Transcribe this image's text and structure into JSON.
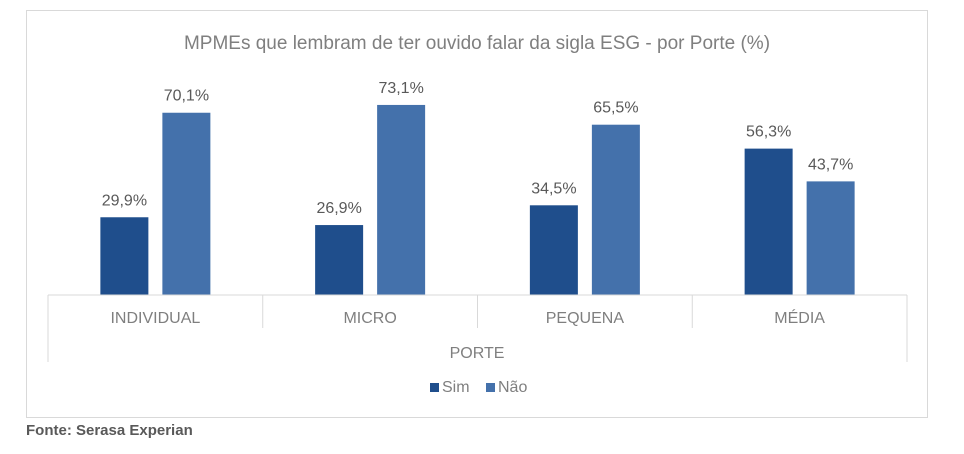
{
  "source_note": "Fonte: Serasa Experian",
  "colors": {
    "sim": "#1f4e8c",
    "nao": "#4471ab",
    "text": "#7f7f7f",
    "axis": "#d9d9d9"
  },
  "chart_data": {
    "type": "bar",
    "title": "MPMEs que lembram de ter ouvido falar da sigla ESG - por Porte (%)",
    "xlabel": "PORTE",
    "ylabel": "",
    "categories": [
      "INDIVIDUAL",
      "MICRO",
      "PEQUENA",
      "MÉDIA"
    ],
    "series": [
      {
        "name": "Sim",
        "values": [
          29.9,
          26.9,
          34.5,
          56.3
        ],
        "labels": [
          "29,9%",
          "26,9%",
          "34,5%",
          "56,3%"
        ]
      },
      {
        "name": "Não",
        "values": [
          70.1,
          73.1,
          65.5,
          43.7
        ],
        "labels": [
          "70,1%",
          "73,1%",
          "65,5%",
          "43,7%"
        ]
      }
    ],
    "ylim": [
      0,
      75
    ],
    "grid": false,
    "legend": "bottom"
  }
}
